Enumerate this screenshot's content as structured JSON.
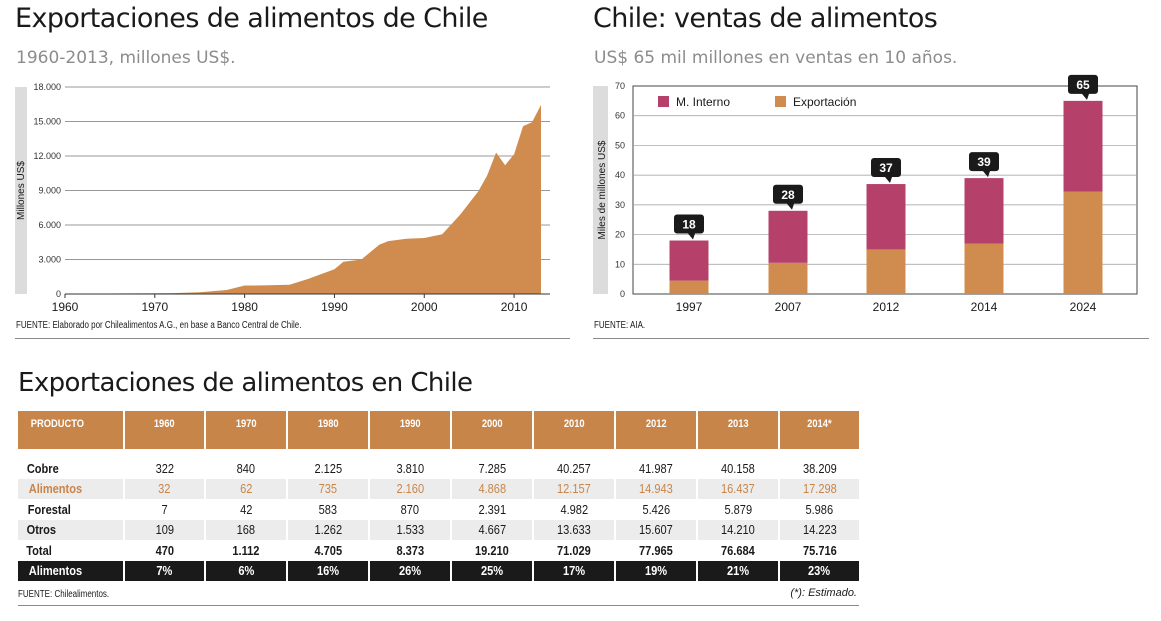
{
  "left_chart": {
    "title": "Exportaciones de alimentos de Chile",
    "subtitle": "1960-2013, millones US$.",
    "source": "FUENTE: Elaborado por Chilealimentos A.G., en base a Banco Central de Chile."
  },
  "right_chart": {
    "title": "Chile: ventas de alimentos",
    "subtitle": "US$ 65 mil millones en ventas en 10 años.",
    "source": "FUENTE: AIA."
  },
  "table_section": {
    "title": "Exportaciones de alimentos en Chile",
    "source": "FUENTE: Chilealimentos.",
    "note": "(*): Estimado.",
    "headers": [
      "PRODUCTO",
      "1960",
      "1970",
      "1980",
      "1990",
      "2000",
      "2010",
      "2012",
      "2013",
      "2014*"
    ],
    "rows": [
      [
        "Cobre",
        "322",
        "840",
        "2.125",
        "3.810",
        "7.285",
        "40.257",
        "41.987",
        "40.158",
        "38.209"
      ],
      [
        "Alimentos",
        "32",
        "62",
        "735",
        "2.160",
        "4.868",
        "12.157",
        "14.943",
        "16.437",
        "17.298"
      ],
      [
        "Forestal",
        "7",
        "42",
        "583",
        "870",
        "2.391",
        "4.982",
        "5.426",
        "5.879",
        "5.986"
      ],
      [
        "Otros",
        "109",
        "168",
        "1.262",
        "1.533",
        "4.667",
        "13.633",
        "15.607",
        "14.210",
        "14.223"
      ],
      [
        "Total",
        "470",
        "1.112",
        "4.705",
        "8.373",
        "19.210",
        "71.029",
        "77.965",
        "76.684",
        "75.716"
      ],
      [
        "Alimentos",
        "7%",
        "6%",
        "16%",
        "26%",
        "25%",
        "17%",
        "19%",
        "21%",
        "23%"
      ]
    ]
  },
  "colors": {
    "area": "#d08c4e",
    "interno": "#b5416a",
    "exportacion": "#d08c4e",
    "header": "#c8854a",
    "highlight": "#c8854a",
    "axis_band": "#dcdcdc"
  },
  "chart_data": [
    {
      "type": "area",
      "ylabel": "Millones US$",
      "ylim": [
        0,
        18000
      ],
      "yticks": [
        0,
        3000,
        6000,
        9000,
        12000,
        15000,
        18000
      ],
      "ytick_labels": [
        "0",
        "3.000",
        "6.000",
        "9.000",
        "12.000",
        "15.000",
        "18.000"
      ],
      "xlim": [
        1960,
        2014
      ],
      "xticks": [
        1960,
        1970,
        1980,
        1990,
        2000,
        2010
      ],
      "grid": true,
      "x": [
        1960,
        1965,
        1970,
        1972,
        1975,
        1978,
        1980,
        1982,
        1985,
        1987,
        1990,
        1991,
        1993,
        1995,
        1996,
        1998,
        2000,
        2002,
        2004,
        2006,
        2007,
        2008,
        2009,
        2010,
        2011,
        2012,
        2013
      ],
      "y": [
        32,
        40,
        62,
        80,
        150,
        350,
        735,
        750,
        800,
        1300,
        2160,
        2800,
        3000,
        4300,
        4600,
        4800,
        4868,
        5200,
        6900,
        8900,
        10300,
        12300,
        11200,
        12157,
        14600,
        14943,
        16437
      ]
    },
    {
      "type": "bar",
      "stacked": true,
      "ylabel": "Miles de millones US$",
      "ylim": [
        0,
        70
      ],
      "yticks": [
        0,
        10,
        20,
        30,
        40,
        50,
        60,
        70
      ],
      "legend": "top-left",
      "categories": [
        "1997",
        "2007",
        "2012",
        "2014",
        "2024"
      ],
      "series": [
        {
          "name": "Exportación",
          "values": [
            4.5,
            10.5,
            15,
            17,
            34.5
          ]
        },
        {
          "name": "M. Interno",
          "values": [
            13.5,
            17.5,
            22,
            22,
            30.5
          ]
        }
      ],
      "totals": [
        18,
        28,
        37,
        39,
        65
      ]
    }
  ]
}
